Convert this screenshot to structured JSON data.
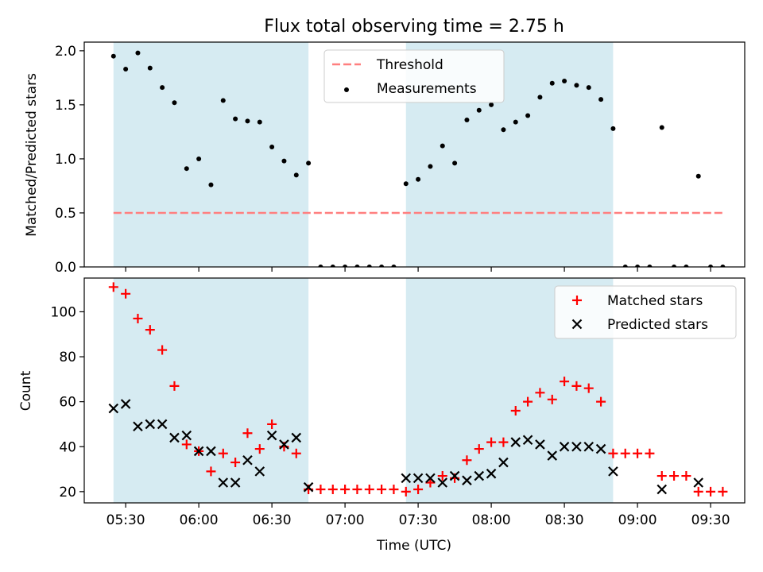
{
  "chart_data": [
    {
      "type": "scatter",
      "title": "Flux total observing time = 2.75 h",
      "ylabel": "Matched/Predicted stars",
      "xlim": [
        "05:13",
        "09:44"
      ],
      "ylim": [
        0,
        2.08
      ],
      "y_ticks": [
        "0.0",
        "0.5",
        "1.0",
        "1.5",
        "2.0"
      ],
      "shaded_spans": [
        [
          "05:25",
          "06:45"
        ],
        [
          "07:25",
          "08:50"
        ]
      ],
      "threshold": {
        "name": "Threshold",
        "value": 0.5,
        "x_range": [
          "05:25",
          "09:35"
        ],
        "color": "#ff7f7f",
        "style": "dashed"
      },
      "legend": {
        "placement": "top-center",
        "entries": [
          "Threshold",
          "Measurements"
        ]
      },
      "series": [
        {
          "name": "Measurements",
          "color": "#000000",
          "marker": "dot",
          "points": [
            [
              "05:25",
              1.95
            ],
            [
              "05:30",
              1.83
            ],
            [
              "05:35",
              1.98
            ],
            [
              "05:40",
              1.84
            ],
            [
              "05:45",
              1.66
            ],
            [
              "05:50",
              1.52
            ],
            [
              "05:55",
              0.91
            ],
            [
              "06:00",
              1.0
            ],
            [
              "06:05",
              0.76
            ],
            [
              "06:10",
              1.54
            ],
            [
              "06:15",
              1.37
            ],
            [
              "06:20",
              1.35
            ],
            [
              "06:25",
              1.34
            ],
            [
              "06:30",
              1.11
            ],
            [
              "06:35",
              0.98
            ],
            [
              "06:40",
              0.85
            ],
            [
              "06:45",
              0.96
            ],
            [
              "06:50",
              0.0
            ],
            [
              "06:55",
              0.0
            ],
            [
              "07:00",
              0.0
            ],
            [
              "07:05",
              0.0
            ],
            [
              "07:10",
              0.0
            ],
            [
              "07:15",
              0.0
            ],
            [
              "07:20",
              0.0
            ],
            [
              "07:25",
              0.77
            ],
            [
              "07:30",
              0.81
            ],
            [
              "07:35",
              0.93
            ],
            [
              "07:40",
              1.12
            ],
            [
              "07:45",
              0.96
            ],
            [
              "07:50",
              1.36
            ],
            [
              "07:55",
              1.45
            ],
            [
              "08:00",
              1.5
            ],
            [
              "08:05",
              1.27
            ],
            [
              "08:10",
              1.34
            ],
            [
              "08:15",
              1.4
            ],
            [
              "08:20",
              1.57
            ],
            [
              "08:25",
              1.7
            ],
            [
              "08:30",
              1.72
            ],
            [
              "08:35",
              1.68
            ],
            [
              "08:40",
              1.66
            ],
            [
              "08:45",
              1.55
            ],
            [
              "08:50",
              1.28
            ],
            [
              "08:55",
              0.0
            ],
            [
              "09:00",
              0.0
            ],
            [
              "09:05",
              0.0
            ],
            [
              "09:10",
              1.29
            ],
            [
              "09:15",
              0.0
            ],
            [
              "09:20",
              0.0
            ],
            [
              "09:25",
              0.84
            ],
            [
              "09:30",
              0.0
            ],
            [
              "09:35",
              0.0
            ]
          ]
        }
      ]
    },
    {
      "type": "scatter",
      "title": "",
      "xlabel": "Time (UTC)",
      "ylabel": "Count",
      "xlim": [
        "05:13",
        "09:44"
      ],
      "ylim": [
        15,
        115
      ],
      "x_ticks": [
        "05:30",
        "06:00",
        "06:30",
        "07:00",
        "07:30",
        "08:00",
        "08:30",
        "09:00",
        "09:30"
      ],
      "y_ticks": [
        "20",
        "40",
        "60",
        "80",
        "100"
      ],
      "shaded_spans": [
        [
          "05:25",
          "06:45"
        ],
        [
          "07:25",
          "08:50"
        ]
      ],
      "legend": {
        "placement": "top-right",
        "entries": [
          "Matched stars",
          "Predicted stars"
        ]
      },
      "series": [
        {
          "name": "Matched stars",
          "color": "#ff0000",
          "marker": "plus",
          "points": [
            [
              "05:25",
              111
            ],
            [
              "05:30",
              108
            ],
            [
              "05:35",
              97
            ],
            [
              "05:40",
              92
            ],
            [
              "05:45",
              83
            ],
            [
              "05:50",
              67
            ],
            [
              "05:55",
              41
            ],
            [
              "06:00",
              38
            ],
            [
              "06:05",
              29
            ],
            [
              "06:10",
              37
            ],
            [
              "06:15",
              33
            ],
            [
              "06:20",
              46
            ],
            [
              "06:25",
              39
            ],
            [
              "06:30",
              50
            ],
            [
              "06:35",
              40
            ],
            [
              "06:40",
              37
            ],
            [
              "06:45",
              21
            ],
            [
              "06:50",
              21
            ],
            [
              "06:55",
              21
            ],
            [
              "07:00",
              21
            ],
            [
              "07:05",
              21
            ],
            [
              "07:10",
              21
            ],
            [
              "07:15",
              21
            ],
            [
              "07:20",
              21
            ],
            [
              "07:25",
              20
            ],
            [
              "07:30",
              21
            ],
            [
              "07:35",
              24
            ],
            [
              "07:40",
              27
            ],
            [
              "07:45",
              26
            ],
            [
              "07:50",
              34
            ],
            [
              "07:55",
              39
            ],
            [
              "08:00",
              42
            ],
            [
              "08:05",
              42
            ],
            [
              "08:10",
              56
            ],
            [
              "08:15",
              60
            ],
            [
              "08:20",
              64
            ],
            [
              "08:25",
              61
            ],
            [
              "08:30",
              69
            ],
            [
              "08:35",
              67
            ],
            [
              "08:40",
              66
            ],
            [
              "08:45",
              60
            ],
            [
              "08:50",
              37
            ],
            [
              "08:55",
              37
            ],
            [
              "09:00",
              37
            ],
            [
              "09:05",
              37
            ],
            [
              "09:10",
              27
            ],
            [
              "09:15",
              27
            ],
            [
              "09:20",
              27
            ],
            [
              "09:25",
              20
            ],
            [
              "09:30",
              20
            ],
            [
              "09:35",
              20
            ]
          ]
        },
        {
          "name": "Predicted stars",
          "color": "#000000",
          "marker": "x",
          "points": [
            [
              "05:25",
              57
            ],
            [
              "05:30",
              59
            ],
            [
              "05:35",
              49
            ],
            [
              "05:40",
              50
            ],
            [
              "05:45",
              50
            ],
            [
              "05:50",
              44
            ],
            [
              "05:55",
              45
            ],
            [
              "06:00",
              38
            ],
            [
              "06:05",
              38
            ],
            [
              "06:10",
              24
            ],
            [
              "06:15",
              24
            ],
            [
              "06:20",
              34
            ],
            [
              "06:25",
              29
            ],
            [
              "06:30",
              45
            ],
            [
              "06:35",
              41
            ],
            [
              "06:40",
              44
            ],
            [
              "06:45",
              22
            ],
            [
              "07:25",
              26
            ],
            [
              "07:30",
              26
            ],
            [
              "07:35",
              26
            ],
            [
              "07:40",
              24
            ],
            [
              "07:45",
              27
            ],
            [
              "07:50",
              25
            ],
            [
              "07:55",
              27
            ],
            [
              "08:00",
              28
            ],
            [
              "08:05",
              33
            ],
            [
              "08:10",
              42
            ],
            [
              "08:15",
              43
            ],
            [
              "08:20",
              41
            ],
            [
              "08:25",
              36
            ],
            [
              "08:30",
              40
            ],
            [
              "08:35",
              40
            ],
            [
              "08:40",
              40
            ],
            [
              "08:45",
              39
            ],
            [
              "08:50",
              29
            ],
            [
              "09:10",
              21
            ],
            [
              "09:25",
              24
            ]
          ]
        }
      ]
    }
  ],
  "colors": {
    "shading": "#add8e6",
    "shading_alpha": 0.5
  }
}
